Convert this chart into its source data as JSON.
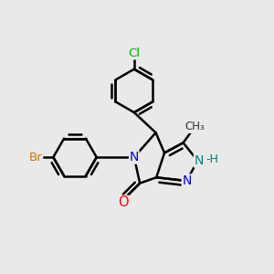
{
  "bg_color": "#e9e9e9",
  "bond_color": "#000000",
  "bond_width": 1.8,
  "atom_colors": {
    "N": "#0000cc",
    "NH": "#008080",
    "O": "#ff0000",
    "Cl": "#00aa00",
    "Br": "#cc7700",
    "C": "#000000"
  },
  "methyl_color": "#333333"
}
